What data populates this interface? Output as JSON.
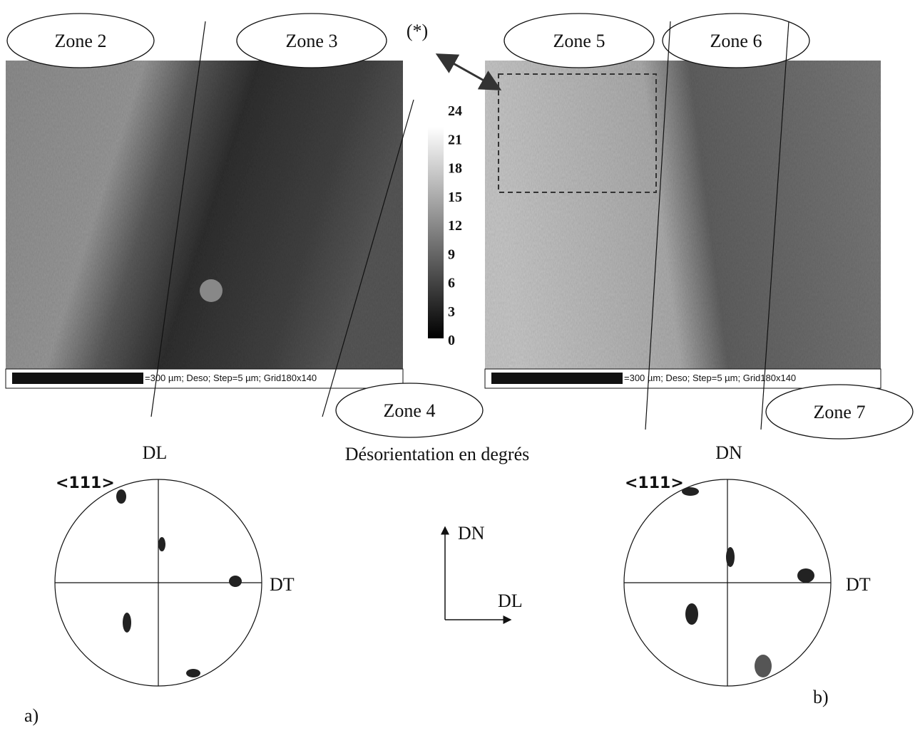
{
  "zones": [
    "Zone 2",
    "Zone 3",
    "Zone 4",
    "Zone 5",
    "Zone 6",
    "Zone 7"
  ],
  "marker": "(*)",
  "colorbar": {
    "ticks": [
      24,
      21,
      18,
      15,
      12,
      9,
      6,
      3,
      0
    ],
    "caption": "Désorientation en degrés"
  },
  "panels": [
    {
      "scale_text": "=300 µm; Deso; Step=5 µm; Grid180x140",
      "top_label": "DL",
      "pole_label": "<111>",
      "right_label": "DT",
      "tag": "a)"
    },
    {
      "scale_text": "=300 µm; Deso; Step=5 µm; Grid180x140",
      "top_label": "DN",
      "pole_label": "<111>",
      "right_label": "DT",
      "tag": "b)"
    }
  ],
  "axes": {
    "up": "DN",
    "right": "DL"
  }
}
